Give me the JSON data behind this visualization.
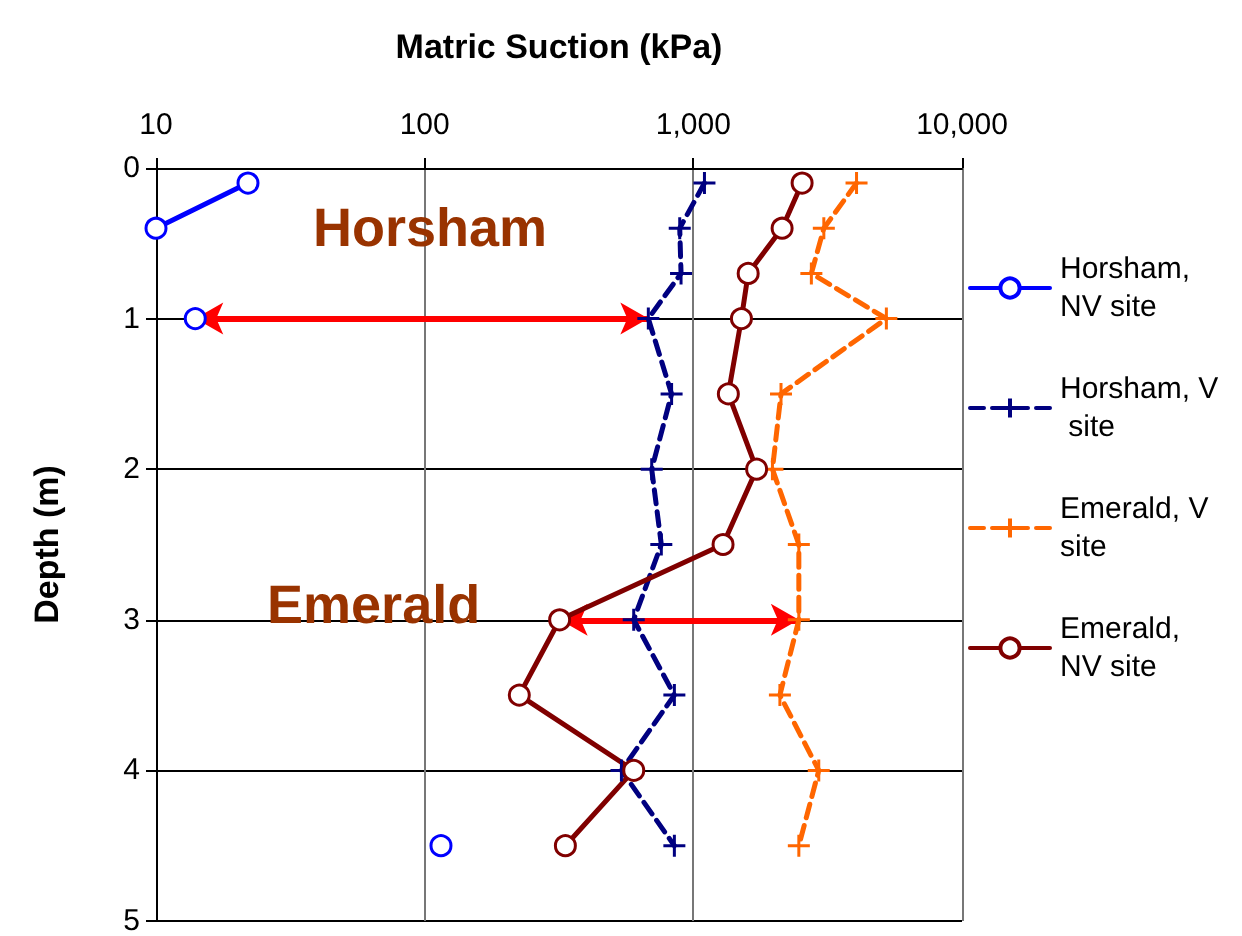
{
  "chart_data": {
    "type": "line",
    "xlabel": "Matric Suction (kPa)",
    "ylabel": "Depth (m)",
    "log": "x",
    "xlim": [
      10,
      10000
    ],
    "xticks": [
      10,
      100,
      {
        "value": 1000,
        "label": "1,000"
      },
      {
        "value": 10000,
        "label": "10,000"
      }
    ],
    "ylim": [
      5,
      0
    ],
    "yticks": [
      0,
      1,
      2,
      3,
      4,
      5
    ],
    "grid": true,
    "legend": "right",
    "annotations": [
      "Horsham",
      "Emerald"
    ],
    "series": [
      {
        "name": "Horsham, NV site",
        "color": "#0000ff",
        "marker": "circle",
        "line_style": "solid",
        "x": [
          22,
          10,
          null,
          14,
          null,
          115
        ],
        "values": [
          0.1,
          0.4,
          null,
          1.0,
          null,
          4.5
        ]
      },
      {
        "name": "Horsham, V site",
        "color": "#000080",
        "marker": "cross",
        "line_style": "dashed",
        "x": [
          1100,
          890,
          900,
          680,
          830,
          700,
          760,
          600,
          850,
          540,
          850
        ],
        "values": [
          0.1,
          0.4,
          0.7,
          1.0,
          1.5,
          2.0,
          2.5,
          3.0,
          3.5,
          4.0,
          4.5
        ]
      },
      {
        "name": "Emerald, V site",
        "color": "#ff6600",
        "marker": "cross",
        "line_style": "dashed",
        "x": [
          4050,
          3060,
          2750,
          5230,
          2120,
          1970,
          2470,
          2470,
          2100,
          2930,
          2470
        ],
        "values": [
          0.1,
          0.4,
          0.7,
          1.0,
          1.5,
          2.0,
          2.5,
          3.0,
          3.5,
          4.0,
          4.5
        ]
      },
      {
        "name": "Emerald, NV site",
        "color": "#800000",
        "marker": "circle",
        "line_style": "solid",
        "x": [
          2540,
          2140,
          1600,
          1510,
          1350,
          1720,
          1290,
          318,
          225,
          600,
          334
        ],
        "values": [
          0.1,
          0.4,
          0.7,
          1.0,
          1.5,
          2.0,
          2.5,
          3.0,
          3.5,
          4.0,
          4.5
        ]
      }
    ]
  }
}
